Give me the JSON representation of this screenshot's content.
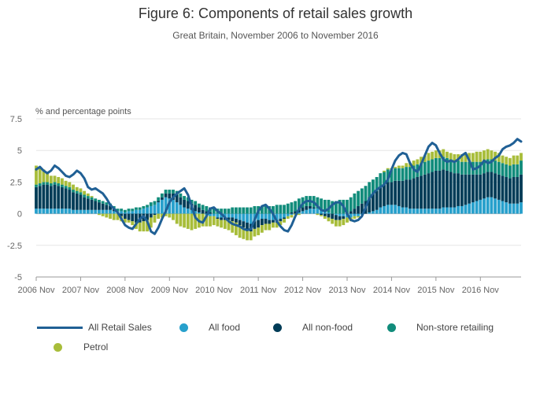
{
  "title": "Figure 6: Components of retail sales growth",
  "subtitle": "Great Britain, November 2006 to November 2016",
  "chart_data": {
    "type": "bar",
    "stacked": true,
    "title": "Figure 6: Components of retail sales growth",
    "subtitle": "Great Britain, November 2006 to November 2016",
    "ylabel": "% and percentage points",
    "xlabel": "",
    "ylim": [
      -5,
      7.5
    ],
    "yticks": [
      -5,
      -2.5,
      0,
      2.5,
      5,
      7.5
    ],
    "ytick_labels": [
      "-5",
      "-2.5",
      "0",
      "2.5",
      "5",
      "7.5"
    ],
    "xtick_labels": [
      "2006 Nov",
      "2007 Nov",
      "2008 Nov",
      "2009 Nov",
      "2010 Nov",
      "2011 Nov",
      "2012 Nov",
      "2013 Nov",
      "2014 Nov",
      "2015 Nov",
      "2016 Nov"
    ],
    "grid": true,
    "legend_position": "bottom",
    "x_start": "2006-11",
    "x_frequency": "monthly",
    "series": [
      {
        "name": "All food",
        "color": "#27a0cc",
        "values": [
          0.4,
          0.4,
          0.4,
          0.4,
          0.4,
          0.4,
          0.4,
          0.4,
          0.4,
          0.4,
          0.3,
          0.3,
          0.3,
          0.3,
          0.3,
          0.3,
          0.3,
          0.3,
          0.3,
          0.3,
          0.3,
          0.2,
          0.2,
          0.2,
          0.1,
          0.2,
          0.2,
          0.3,
          0.3,
          0.4,
          0.5,
          0.6,
          0.7,
          0.9,
          1.1,
          1.3,
          1.2,
          1.1,
          0.9,
          0.7,
          0.5,
          0.4,
          0.3,
          0.2,
          0.1,
          0.0,
          -0.1,
          -0.2,
          -0.2,
          -0.3,
          -0.3,
          -0.3,
          -0.3,
          -0.3,
          -0.4,
          -0.5,
          -0.6,
          -0.7,
          -0.8,
          -0.6,
          -0.5,
          -0.4,
          -0.4,
          -0.5,
          -0.5,
          -0.5,
          -0.4,
          -0.3,
          -0.2,
          -0.1,
          0.0,
          0.1,
          0.2,
          0.3,
          0.4,
          0.4,
          0.4,
          0.3,
          0.2,
          0.1,
          0.0,
          -0.1,
          -0.2,
          -0.2,
          -0.3,
          -0.3,
          -0.2,
          -0.2,
          -0.1,
          0.0,
          0.1,
          0.2,
          0.3,
          0.5,
          0.6,
          0.7,
          0.7,
          0.7,
          0.6,
          0.5,
          0.5,
          0.4,
          0.4,
          0.4,
          0.4,
          0.4,
          0.4,
          0.4,
          0.4,
          0.4,
          0.5,
          0.5,
          0.5,
          0.5,
          0.6,
          0.6,
          0.7,
          0.8,
          0.9,
          1.0,
          1.1,
          1.2,
          1.3,
          1.3,
          1.2,
          1.1,
          1.0,
          0.9,
          0.8,
          0.8,
          0.8,
          0.9,
          1.0,
          1.1,
          1.1
        ]
      },
      {
        "name": "All non-food",
        "color": "#003c57",
        "values": [
          1.7,
          1.8,
          1.9,
          1.9,
          1.8,
          1.9,
          1.8,
          1.7,
          1.6,
          1.5,
          1.4,
          1.3,
          1.2,
          1.0,
          0.9,
          0.8,
          0.7,
          0.6,
          0.5,
          0.4,
          0.3,
          0.2,
          0.0,
          -0.2,
          -0.4,
          -0.5,
          -0.6,
          -0.7,
          -0.7,
          -0.6,
          -0.5,
          -0.3,
          -0.1,
          0.1,
          0.2,
          0.3,
          0.4,
          0.5,
          0.6,
          0.6,
          0.6,
          0.6,
          0.5,
          0.5,
          0.4,
          0.3,
          0.2,
          0.1,
          0.0,
          -0.1,
          -0.2,
          -0.2,
          -0.2,
          -0.3,
          -0.3,
          -0.4,
          -0.5,
          -0.6,
          -0.6,
          -0.6,
          -0.6,
          -0.5,
          -0.4,
          -0.3,
          -0.2,
          -0.2,
          -0.2,
          -0.1,
          0.0,
          0.1,
          0.2,
          0.3,
          0.3,
          0.3,
          0.2,
          0.1,
          0.0,
          -0.1,
          -0.2,
          -0.3,
          -0.4,
          -0.4,
          -0.3,
          -0.2,
          0.0,
          0.2,
          0.4,
          0.6,
          0.8,
          1.0,
          1.2,
          1.4,
          1.5,
          1.6,
          1.7,
          1.8,
          1.8,
          1.9,
          2.0,
          2.1,
          2.2,
          2.3,
          2.4,
          2.5,
          2.6,
          2.7,
          2.8,
          2.9,
          3.0,
          3.0,
          3.0,
          2.9,
          2.8,
          2.7,
          2.6,
          2.5,
          2.4,
          2.3,
          2.2,
          2.1,
          2.0,
          2.0,
          2.0,
          2.0,
          2.0,
          2.0,
          2.0,
          2.0,
          2.0,
          2.1,
          2.1,
          2.2,
          2.2
        ]
      },
      {
        "name": "Non-store retailing",
        "color": "#118c7b",
        "values": [
          0.2,
          0.2,
          0.2,
          0.2,
          0.2,
          0.2,
          0.2,
          0.2,
          0.2,
          0.2,
          0.2,
          0.2,
          0.2,
          0.2,
          0.2,
          0.2,
          0.2,
          0.2,
          0.2,
          0.2,
          0.2,
          0.2,
          0.2,
          0.2,
          0.2,
          0.2,
          0.2,
          0.2,
          0.2,
          0.2,
          0.2,
          0.3,
          0.3,
          0.3,
          0.3,
          0.3,
          0.3,
          0.3,
          0.3,
          0.3,
          0.3,
          0.3,
          0.3,
          0.3,
          0.3,
          0.4,
          0.4,
          0.4,
          0.4,
          0.4,
          0.4,
          0.4,
          0.4,
          0.5,
          0.5,
          0.5,
          0.5,
          0.5,
          0.5,
          0.6,
          0.6,
          0.6,
          0.6,
          0.6,
          0.6,
          0.7,
          0.7,
          0.7,
          0.8,
          0.8,
          0.8,
          0.8,
          0.8,
          0.8,
          0.8,
          0.9,
          0.9,
          0.9,
          0.9,
          1.0,
          1.0,
          1.0,
          1.1,
          1.1,
          1.1,
          1.1,
          1.2,
          1.2,
          1.2,
          1.2,
          1.2,
          1.1,
          1.1,
          1.1,
          1.0,
          1.0,
          1.0,
          1.0,
          1.0,
          1.0,
          1.0,
          1.0,
          1.0,
          1.0,
          1.0,
          1.0,
          1.0,
          1.0,
          1.0,
          1.0,
          1.0,
          1.0,
          1.0,
          1.0,
          1.0,
          1.0,
          1.0,
          1.0,
          1.0,
          1.0,
          1.0,
          1.0,
          1.0,
          1.0,
          1.0,
          1.0,
          1.0,
          1.0,
          1.0,
          1.0,
          1.0,
          1.1,
          1.1,
          1.2,
          1.2
        ]
      },
      {
        "name": "Petrol",
        "color": "#a8bd3a",
        "values": [
          1.5,
          1.3,
          1.0,
          0.8,
          0.6,
          0.5,
          0.5,
          0.5,
          0.4,
          0.4,
          0.4,
          0.3,
          0.3,
          0.3,
          0.2,
          0.1,
          0.0,
          -0.1,
          -0.2,
          -0.3,
          -0.4,
          -0.5,
          -0.5,
          -0.4,
          -0.3,
          -0.2,
          -0.3,
          -0.5,
          -0.7,
          -0.8,
          -0.9,
          -0.8,
          -0.6,
          -0.4,
          -0.3,
          -0.2,
          -0.3,
          -0.5,
          -0.8,
          -1.0,
          -1.1,
          -1.2,
          -1.3,
          -1.2,
          -1.1,
          -1.0,
          -0.9,
          -0.8,
          -0.7,
          -0.6,
          -0.6,
          -0.7,
          -0.8,
          -0.9,
          -1.0,
          -1.0,
          -0.9,
          -0.8,
          -0.7,
          -0.6,
          -0.6,
          -0.6,
          -0.5,
          -0.5,
          -0.4,
          -0.4,
          -0.3,
          -0.3,
          -0.2,
          -0.2,
          -0.1,
          -0.1,
          0.0,
          0.0,
          0.0,
          0.0,
          -0.1,
          -0.1,
          -0.2,
          -0.3,
          -0.4,
          -0.5,
          -0.5,
          -0.5,
          -0.4,
          -0.3,
          -0.2,
          -0.1,
          0.0,
          0.0,
          0.0,
          0.0,
          0.0,
          0.0,
          0.1,
          0.1,
          0.1,
          0.1,
          0.2,
          0.2,
          0.3,
          0.3,
          0.4,
          0.4,
          0.5,
          0.5,
          0.6,
          0.6,
          0.6,
          0.6,
          0.6,
          0.5,
          0.5,
          0.5,
          0.5,
          0.6,
          0.6,
          0.7,
          0.7,
          0.8,
          0.8,
          0.8,
          0.8,
          0.7,
          0.7,
          0.7,
          0.6,
          0.6,
          0.6,
          0.7,
          0.7,
          0.6,
          0.5,
          0.4,
          0.3
        ]
      }
    ],
    "line": {
      "name": "All Retail Sales",
      "color": "#206095",
      "values": [
        3.5,
        3.7,
        3.4,
        3.2,
        3.4,
        3.8,
        3.6,
        3.3,
        3.0,
        2.9,
        3.1,
        3.4,
        3.2,
        2.8,
        2.1,
        1.9,
        2.0,
        1.8,
        1.6,
        1.2,
        0.7,
        0.4,
        0.1,
        -0.4,
        -0.9,
        -1.1,
        -1.2,
        -0.8,
        -0.4,
        -0.2,
        -0.6,
        -1.4,
        -1.6,
        -1.1,
        -0.4,
        0.2,
        0.9,
        1.3,
        1.6,
        1.8,
        2.0,
        1.5,
        0.6,
        -0.3,
        -0.6,
        -0.7,
        -0.2,
        0.4,
        0.5,
        0.2,
        0.0,
        -0.3,
        -0.6,
        -0.8,
        -0.9,
        -1.0,
        -1.2,
        -1.3,
        -1.2,
        -0.5,
        0.2,
        0.6,
        0.7,
        0.4,
        0.0,
        -0.6,
        -1.0,
        -1.3,
        -1.4,
        -0.9,
        -0.2,
        0.4,
        0.8,
        1.0,
        1.0,
        0.9,
        0.6,
        0.3,
        0.2,
        0.4,
        0.7,
        0.9,
        0.9,
        0.6,
        0.0,
        -0.5,
        -0.6,
        -0.5,
        -0.2,
        0.5,
        1.2,
        1.6,
        1.9,
        2.1,
        2.3,
        2.7,
        3.5,
        4.2,
        4.6,
        4.8,
        4.7,
        4.0,
        3.5,
        3.3,
        3.9,
        4.6,
        5.3,
        5.6,
        5.4,
        4.8,
        4.3,
        4.1,
        4.2,
        4.1,
        4.3,
        4.6,
        4.8,
        4.2,
        3.5,
        3.6,
        3.8,
        4.2,
        4.0,
        4.1,
        4.4,
        4.6,
        5.1,
        5.3,
        5.4,
        5.6,
        5.9,
        5.7
      ]
    }
  },
  "legend": [
    {
      "label": "All Retail Sales",
      "kind": "line",
      "color": "#206095"
    },
    {
      "label": "All food",
      "kind": "dot",
      "color": "#27a0cc"
    },
    {
      "label": "All non-food",
      "kind": "dot",
      "color": "#003c57"
    },
    {
      "label": "Non-store retailing",
      "kind": "dot",
      "color": "#118c7b"
    },
    {
      "label": "Petrol",
      "kind": "dot",
      "color": "#a8bd3a"
    }
  ]
}
